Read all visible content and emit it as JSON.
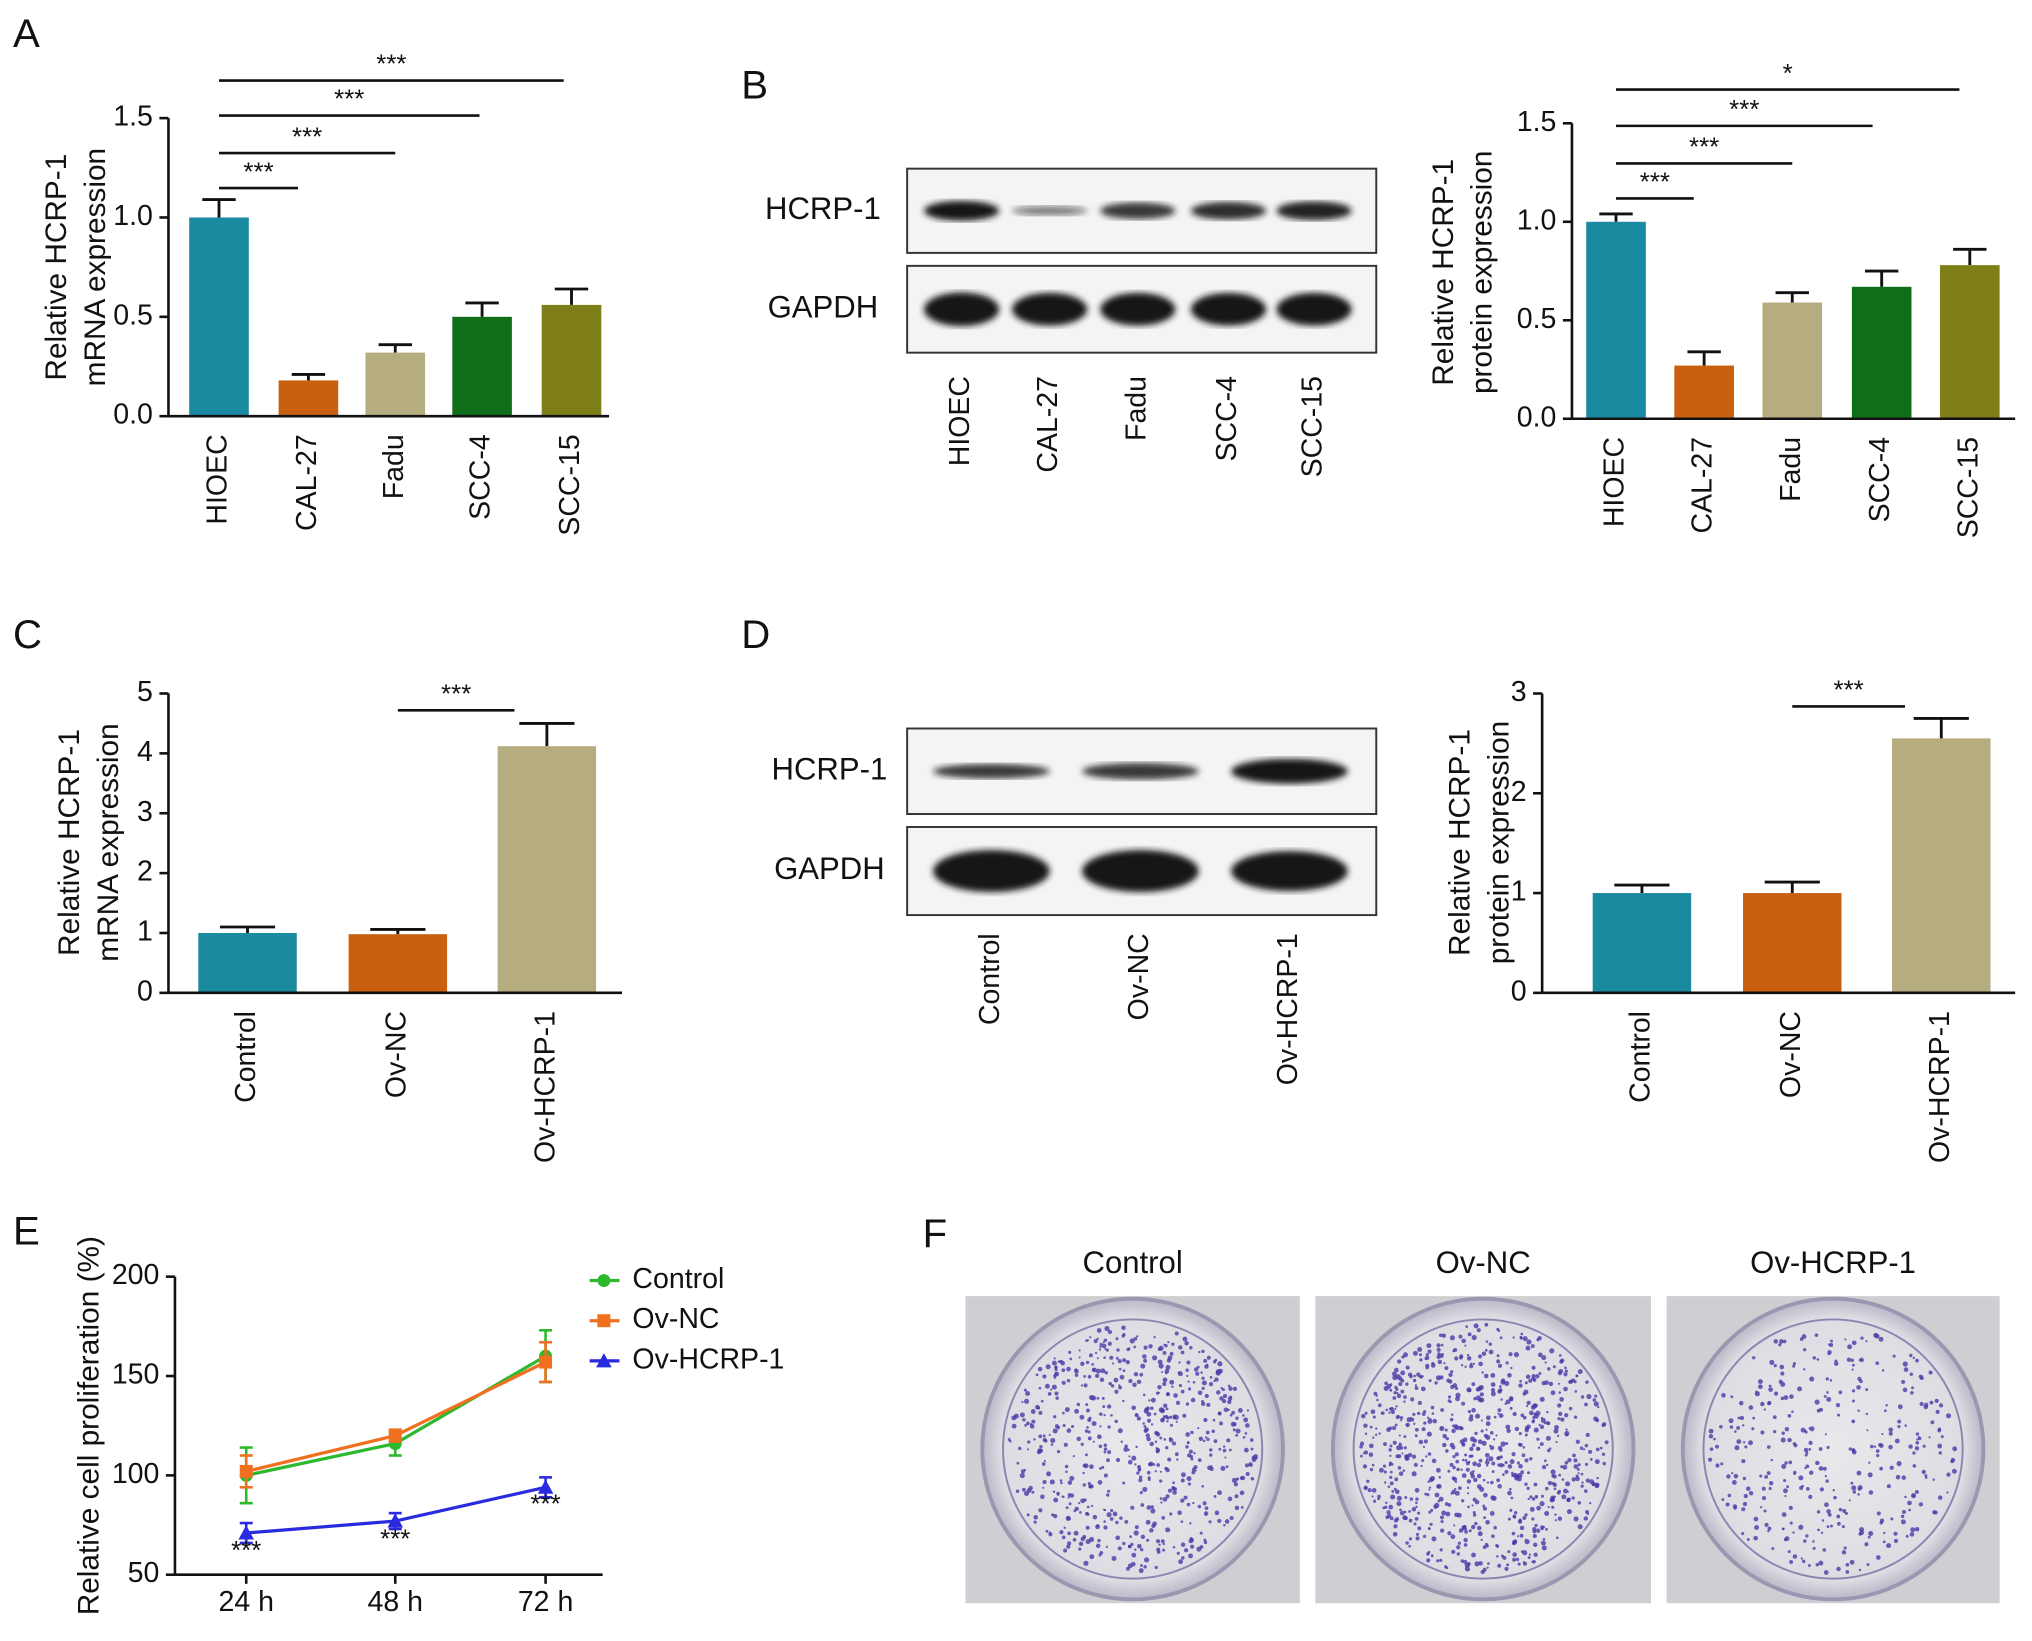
{
  "panel_labels": [
    "A",
    "B",
    "C",
    "D",
    "E",
    "F"
  ],
  "blots": [
    {
      "rows": [
        "HCRP-1",
        "GAPDH"
      ],
      "lanes": [
        "HIOEC",
        "CAL-27",
        "Fadu",
        "SCC-4",
        "SCC-15"
      ]
    },
    {
      "rows": [
        "HCRP-1",
        "GAPDH"
      ],
      "lanes": [
        "Control",
        "Ov-NC",
        "Ov-HCRP-1"
      ]
    }
  ],
  "colony": {
    "labels": [
      "Control",
      "Ov-NC",
      "Ov-HCRP-1"
    ]
  },
  "chart_data": [
    {
      "type": "bar",
      "ylabel": [
        "Relative HCRP-1",
        "mRNA expression"
      ],
      "categories": [
        "HIOEC",
        "CAL-27",
        "Fadu",
        "SCC-4",
        "SCC-15"
      ],
      "values": [
        1.0,
        0.18,
        0.32,
        0.5,
        0.56
      ],
      "errors": [
        0.09,
        0.03,
        0.04,
        0.07,
        0.08
      ],
      "colors": [
        "#1a8aa0",
        "#c8600f",
        "#b5ad7f",
        "#0e6e1a",
        "#7f7f1a"
      ],
      "ylim": [
        0,
        1.5
      ],
      "yticks": [
        {
          "value": 0,
          "label": "0.0"
        },
        0.5,
        {
          "value": 1,
          "label": "1.0"
        },
        1.5
      ],
      "annotations": [
        "***",
        "***",
        "***",
        "***"
      ]
    },
    {
      "type": "bar",
      "ylabel": [
        "Relative HCRP-1",
        "protein expression"
      ],
      "categories": [
        "HIOEC",
        "CAL-27",
        "Fadu",
        "SCC-4",
        "SCC-15"
      ],
      "values": [
        1.0,
        0.27,
        0.59,
        0.67,
        0.78
      ],
      "errors": [
        0.04,
        0.07,
        0.05,
        0.08,
        0.08
      ],
      "colors": [
        "#1a8aa0",
        "#c8600f",
        "#b5ad7f",
        "#0e6e1a",
        "#7f7f1a"
      ],
      "ylim": [
        0,
        1.5
      ],
      "yticks": [
        {
          "value": 0,
          "label": "0.0"
        },
        0.5,
        {
          "value": 1,
          "label": "1.0"
        },
        1.5
      ],
      "annotations": [
        "***",
        "***",
        "***",
        "*"
      ]
    },
    {
      "type": "bar",
      "ylabel": [
        "Relative HCRP-1",
        "mRNA expression"
      ],
      "categories": [
        "Control",
        "Ov-NC",
        "Ov-HCRP-1"
      ],
      "values": [
        1.0,
        0.98,
        4.12
      ],
      "errors": [
        0.1,
        0.08,
        0.38
      ],
      "colors": [
        "#1a8aa0",
        "#c8600f",
        "#b5ad7f"
      ],
      "ylim": [
        0,
        5
      ],
      "yticks": [
        0,
        1,
        2,
        3,
        4,
        5
      ],
      "annotations": [
        "***"
      ]
    },
    {
      "type": "bar",
      "ylabel": [
        "Relative HCRP-1",
        "protein expression"
      ],
      "categories": [
        "Control",
        "Ov-NC",
        "Ov-HCRP-1"
      ],
      "values": [
        1.0,
        1.0,
        2.55
      ],
      "errors": [
        0.08,
        0.11,
        0.2
      ],
      "colors": [
        "#1a8aa0",
        "#c8600f",
        "#b5ad7f"
      ],
      "ylim": [
        0,
        3
      ],
      "yticks": [
        0,
        1,
        2,
        3
      ],
      "annotations": [
        "***"
      ]
    },
    {
      "type": "line",
      "ylabel": [
        "Relative cell proliferation (%)"
      ],
      "categories": [
        "24 h",
        "48 h",
        "72 h"
      ],
      "series": [
        {
          "name": "Control",
          "color": "#2db82d",
          "marker": "circle",
          "values": [
            100,
            116,
            160
          ],
          "errors": [
            14,
            6,
            13
          ]
        },
        {
          "name": "Ov-NC",
          "color": "#f07020",
          "marker": "square",
          "values": [
            102,
            120,
            157
          ],
          "errors": [
            8,
            3,
            10
          ]
        },
        {
          "name": "Ov-HCRP-1",
          "color": "#2a2ae0",
          "marker": "triangle",
          "values": [
            71,
            77,
            94
          ],
          "errors": [
            5,
            4,
            5
          ]
        }
      ],
      "ylim": [
        50,
        200
      ],
      "yticks": [
        50,
        100,
        150,
        200
      ],
      "annotations": [
        "***",
        "***",
        "***"
      ]
    }
  ]
}
